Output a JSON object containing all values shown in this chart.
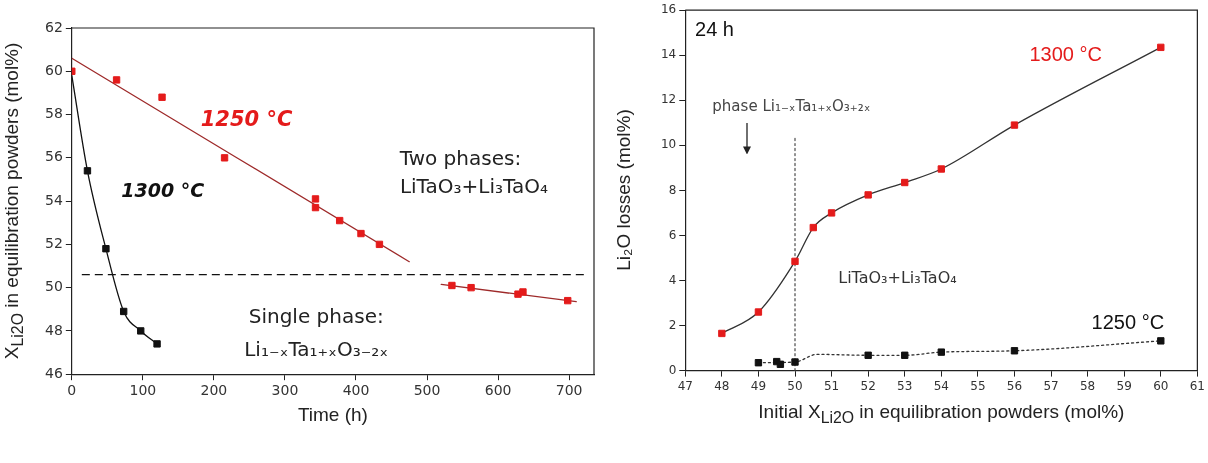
{
  "chart_data": [
    {
      "type": "scatter",
      "xlabel": "Time (h)",
      "ylabel": "X$_{Li2O}$ in equilibration powders (mol%)",
      "xlim": [
        0,
        735
      ],
      "ylim": [
        46,
        62
      ],
      "xticks": [
        0,
        100,
        200,
        300,
        400,
        500,
        600,
        700
      ],
      "yticks": [
        46,
        48,
        50,
        52,
        54,
        56,
        58,
        60,
        62
      ],
      "marker": "square",
      "series": [
        {
          "type": "line",
          "marker": "none",
          "color": "#9e2a2a",
          "x": [
            0,
            475
          ],
          "values": [
            60.6,
            51.2
          ]
        },
        {
          "type": "line",
          "marker": "none",
          "color": "#9e2a2a",
          "x": [
            520,
            710
          ],
          "values": [
            50.15,
            49.35
          ]
        },
        {
          "type": "line",
          "marker": "none",
          "color": "#111111",
          "x": [
            0,
            22,
            48,
            73,
            97,
            120
          ],
          "values": [
            59.8,
            55.4,
            51.8,
            48.9,
            48.0,
            47.4
          ]
        },
        {
          "color": "#e41b1b",
          "x": [
            0,
            63,
            127,
            215,
            343,
            343,
            377,
            407,
            433,
            535,
            562,
            628,
            635,
            698
          ],
          "values": [
            60.0,
            59.6,
            58.8,
            56.0,
            54.1,
            53.7,
            53.1,
            52.5,
            52.0,
            50.1,
            50.0,
            49.7,
            49.8,
            49.4
          ]
        },
        {
          "color": "#111111",
          "x": [
            22,
            48,
            73,
            97,
            120
          ],
          "values": [
            55.4,
            51.8,
            48.9,
            48.0,
            47.4
          ]
        }
      ],
      "ref_lines": [
        {
          "axis": "y",
          "value": 50.6,
          "line_style": "dashed",
          "color": "#111111"
        }
      ],
      "annotations": [
        "1250 °C",
        "1300 °C",
        "Two phases:",
        "LiTaO₃+Li₃TaO₄",
        "Single phase:",
        "Li₁₋ₓTa₁₊ₓO₃₋₂ₓ"
      ]
    },
    {
      "type": "scatter",
      "xlabel": "Initial X$_{Li2O}$ in equilibration powders (mol%)",
      "ylabel": "Li₂O losses (mol%)",
      "xlim": [
        47,
        61
      ],
      "ylim": [
        0,
        16
      ],
      "xticks": [
        47,
        48,
        49,
        50,
        51,
        52,
        53,
        54,
        55,
        56,
        57,
        58,
        59,
        60,
        61
      ],
      "yticks": [
        0,
        2,
        4,
        6,
        8,
        10,
        12,
        14,
        16
      ],
      "marker": "square",
      "series": [
        {
          "type": "line",
          "marker": "none",
          "color": "#333333",
          "x": [
            48,
            49,
            50,
            50.5,
            51,
            52,
            53,
            54,
            56,
            60
          ],
          "values": [
            1.65,
            2.6,
            4.85,
            6.35,
            7.0,
            7.8,
            8.35,
            8.95,
            10.9,
            14.35
          ]
        },
        {
          "type": "line",
          "marker": "none",
          "line_style": "dotted",
          "color": "#333333",
          "x": [
            49,
            50,
            50.6,
            52,
            53,
            54,
            56,
            60
          ],
          "values": [
            0.35,
            0.38,
            0.72,
            0.68,
            0.68,
            0.82,
            0.88,
            1.32
          ]
        },
        {
          "type": "line",
          "marker": "none",
          "line_style": "dotted",
          "color": "#555555",
          "x": [
            50,
            50
          ],
          "values": [
            0,
            10.35
          ]
        },
        {
          "color": "#e41b1b",
          "x": [
            48,
            49,
            50,
            50.5,
            51,
            52,
            53,
            54,
            56,
            60
          ],
          "values": [
            1.65,
            2.6,
            4.85,
            6.35,
            7.0,
            7.8,
            8.35,
            8.95,
            10.9,
            14.35
          ]
        },
        {
          "color": "#111111",
          "x": [
            49,
            49.5,
            49.6,
            50,
            52,
            53,
            54,
            56,
            60
          ],
          "values": [
            0.35,
            0.4,
            0.28,
            0.38,
            0.68,
            0.68,
            0.82,
            0.88,
            1.32
          ]
        }
      ],
      "annotations": [
        "24 h",
        "1300 °C",
        "1250 °C",
        "phase Li₁₋ₓTa₁₊ₓO₃₊₂ₓ",
        "LiTaO₃+Li₃TaO₄"
      ]
    }
  ]
}
